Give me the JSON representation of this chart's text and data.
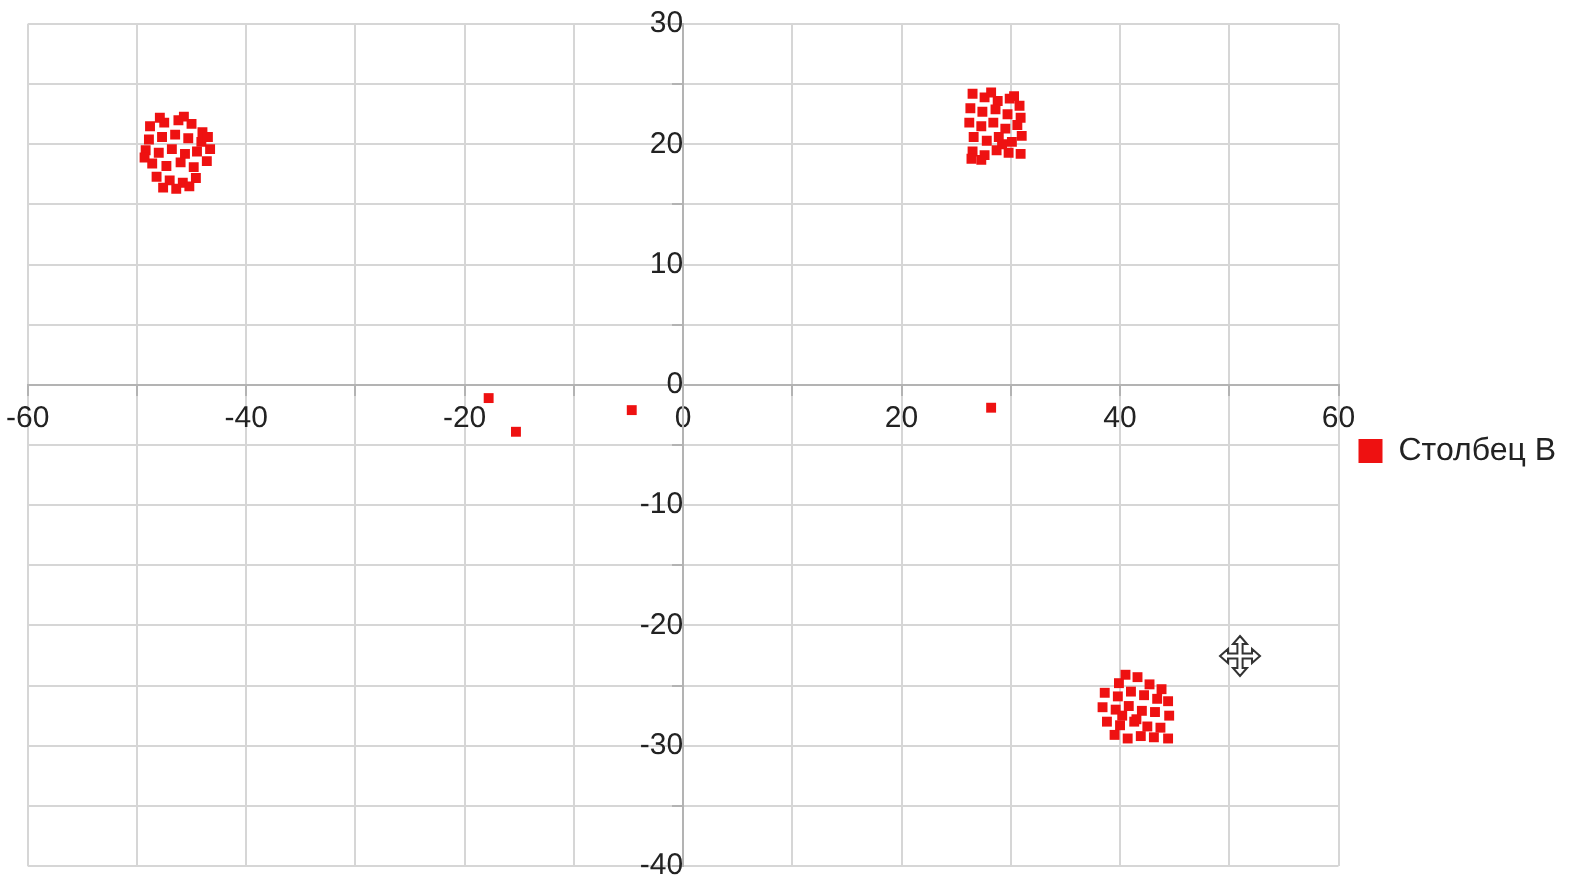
{
  "chart_data": {
    "type": "scatter",
    "xlim": [
      -60,
      60
    ],
    "ylim": [
      -40,
      30
    ],
    "xticks": [
      -60,
      {
        "value": -50,
        "label": null
      },
      -40,
      {
        "value": -30,
        "label": null
      },
      -20,
      {
        "value": -10,
        "label": null
      },
      0,
      {
        "value": 10,
        "label": null
      },
      20,
      {
        "value": 30,
        "label": null
      },
      40,
      {
        "value": 50,
        "label": null
      },
      60
    ],
    "yticks": [
      -40,
      {
        "value": -35,
        "label": null
      },
      -30,
      {
        "value": -25,
        "label": null
      },
      -20,
      {
        "value": -15,
        "label": null
      },
      -10,
      {
        "value": -5,
        "label": null
      },
      0,
      {
        "value": 5,
        "label": null
      },
      10,
      {
        "value": 15,
        "label": null
      },
      20,
      {
        "value": 25,
        "label": null
      },
      30
    ],
    "grid": true,
    "legend": "right",
    "marker": "square",
    "series": [
      {
        "name": "Столбец B",
        "color": "#ee1111",
        "x": [
          -48.8,
          -47.5,
          -46.2,
          -45,
          -44,
          -48.9,
          -47.7,
          -46.5,
          -45.3,
          -44.1,
          -43.3,
          -49.2,
          -48,
          -46.8,
          -45.6,
          -44.5,
          -48.6,
          -47.3,
          -46,
          -44.8,
          -43.6,
          -48.2,
          -47,
          -45.8,
          -44.6,
          -47.6,
          -46.4,
          -45.2,
          -47.9,
          -45.7,
          -43.5,
          -49.3,
          26.5,
          27.6,
          28.8,
          29.9,
          30.8,
          26.3,
          27.4,
          28.6,
          29.7,
          30.9,
          26.2,
          27.3,
          28.4,
          29.5,
          30.6,
          31,
          26.6,
          27.8,
          28.9,
          30.1,
          26.5,
          27.6,
          28.7,
          29.8,
          30.9,
          26.4,
          27.3,
          28.2,
          30.3,
          29.2,
          40.5,
          41.6,
          39.9,
          42.7,
          43.8,
          38.6,
          39.8,
          41,
          42.2,
          43.4,
          44.4,
          38.4,
          39.6,
          40.8,
          42,
          43.2,
          44.5,
          38.8,
          40,
          41.3,
          42.5,
          43.7,
          39.5,
          40.7,
          41.9,
          43.1,
          44.4,
          41.5,
          40.2,
          -17.8,
          -15.3,
          -4.7,
          28.2
        ],
        "values": [
          21.5,
          21.8,
          22,
          21.7,
          21,
          20.4,
          20.6,
          20.8,
          20.5,
          20.2,
          19.6,
          19.5,
          19.3,
          19.6,
          19.2,
          19.4,
          18.4,
          18.2,
          18.5,
          18.1,
          18.6,
          17.3,
          17,
          16.8,
          17.2,
          16.4,
          16.3,
          16.5,
          22.2,
          22.3,
          20.6,
          18.9,
          24.2,
          23.9,
          23.6,
          23.8,
          23.2,
          23,
          22.7,
          22.9,
          22.5,
          22.2,
          21.8,
          21.5,
          21.8,
          21.3,
          21.6,
          20.7,
          20.6,
          20.3,
          20.6,
          20.2,
          19.4,
          19.1,
          19.5,
          19.3,
          19.2,
          18.8,
          18.7,
          24.3,
          24,
          20,
          -24.1,
          -24.3,
          -24.8,
          -24.9,
          -25.3,
          -25.6,
          -25.9,
          -25.5,
          -25.8,
          -26.1,
          -26.3,
          -26.8,
          -27,
          -26.7,
          -27.1,
          -27.2,
          -27.5,
          -28,
          -28.3,
          -28,
          -28.4,
          -28.5,
          -29.1,
          -29.4,
          -29.2,
          -29.3,
          -29.4,
          -27.8,
          -27.5,
          -1.1,
          -3.9,
          -2.1,
          -1.9
        ]
      }
    ]
  }
}
